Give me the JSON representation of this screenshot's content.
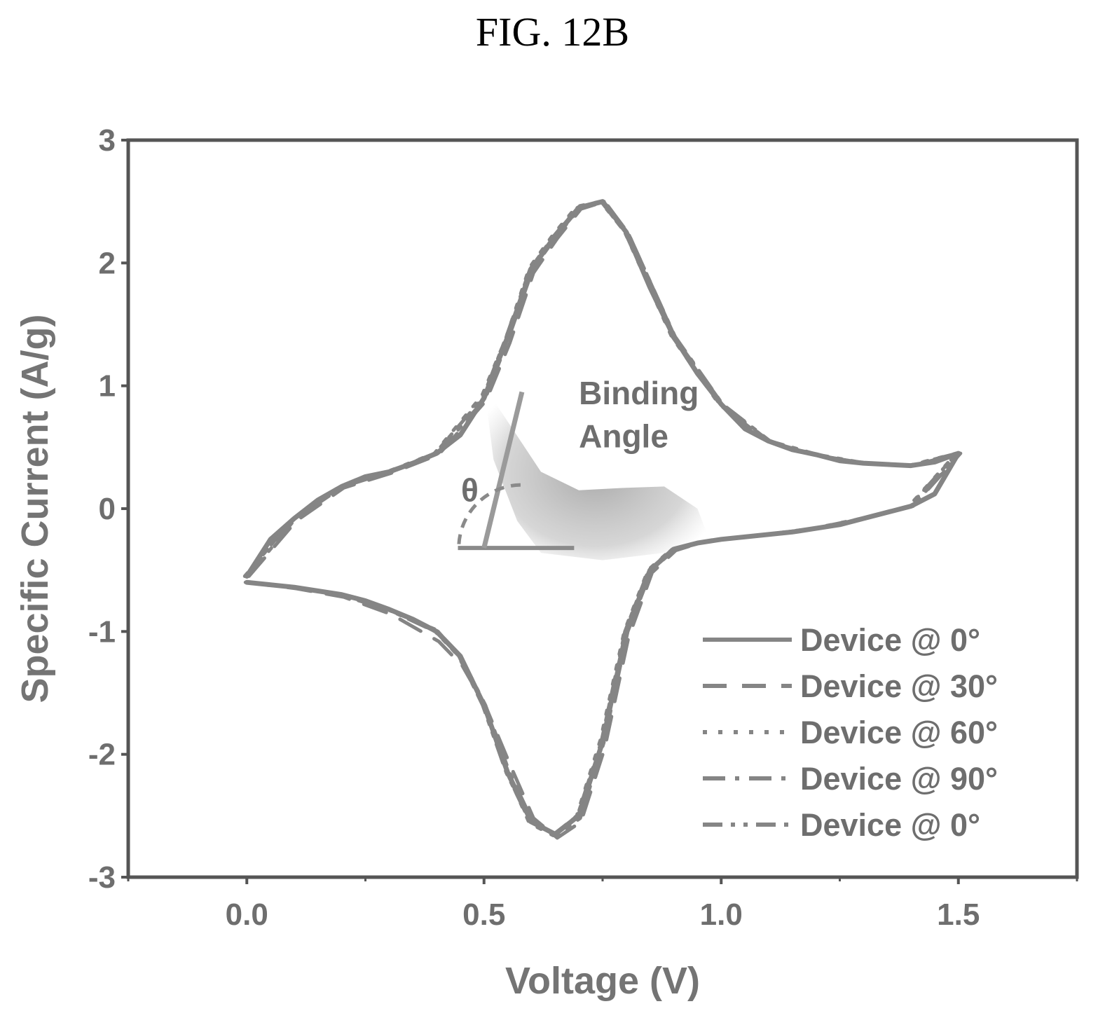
{
  "figure_label": "FIG. 12B",
  "chart_data": {
    "type": "line",
    "title": "",
    "xlabel": "Voltage (V)",
    "ylabel": "Specific Current (A/g)",
    "xlim": [
      -0.25,
      1.75
    ],
    "ylim": [
      -3,
      3
    ],
    "xticks": [
      0.0,
      0.5,
      1.0,
      1.5
    ],
    "xtick_labels": [
      "0.0",
      "0.5",
      "1.0",
      "1.5"
    ],
    "yticks": [
      -3,
      -2,
      -1,
      0,
      1,
      2,
      3
    ],
    "ytick_labels": [
      "-3",
      "-2",
      "-1",
      "0",
      "1",
      "2",
      "3"
    ],
    "grid": false,
    "legend_position": "bottom-right",
    "annotations": {
      "binding_line1": "Binding",
      "binding_line2": "Angle",
      "theta": "θ"
    },
    "series": [
      {
        "name": "Device @ 0°",
        "style": "solid",
        "x": [
          0.0,
          0.05,
          0.1,
          0.15,
          0.2,
          0.25,
          0.3,
          0.35,
          0.4,
          0.45,
          0.5,
          0.55,
          0.6,
          0.65,
          0.7,
          0.75,
          0.8,
          0.85,
          0.9,
          0.95,
          1.0,
          1.05,
          1.1,
          1.15,
          1.2,
          1.25,
          1.3,
          1.35,
          1.4,
          1.45,
          1.5,
          1.45,
          1.4,
          1.35,
          1.3,
          1.25,
          1.2,
          1.15,
          1.1,
          1.05,
          1.0,
          0.95,
          0.9,
          0.85,
          0.8,
          0.75,
          0.7,
          0.65,
          0.6,
          0.55,
          0.5,
          0.45,
          0.4,
          0.35,
          0.3,
          0.25,
          0.2,
          0.15,
          0.1,
          0.05,
          0.0
        ],
        "y": [
          -0.55,
          -0.25,
          -0.08,
          0.07,
          0.18,
          0.26,
          0.3,
          0.37,
          0.45,
          0.6,
          0.9,
          1.4,
          1.95,
          2.22,
          2.45,
          2.5,
          2.25,
          1.8,
          1.4,
          1.1,
          0.85,
          0.65,
          0.55,
          0.48,
          0.44,
          0.39,
          0.37,
          0.36,
          0.35,
          0.38,
          0.45,
          0.12,
          0.02,
          -0.03,
          -0.08,
          -0.13,
          -0.16,
          -0.19,
          -0.21,
          -0.23,
          -0.25,
          -0.28,
          -0.33,
          -0.5,
          -1.0,
          -1.9,
          -2.5,
          -2.65,
          -2.55,
          -2.15,
          -1.6,
          -1.2,
          -1.0,
          -0.9,
          -0.82,
          -0.75,
          -0.7,
          -0.67,
          -0.64,
          -0.62,
          -0.6
        ]
      },
      {
        "name": "Device @ 30°",
        "style": "dashed",
        "x": [
          0.0,
          0.1,
          0.2,
          0.3,
          0.4,
          0.5,
          0.55,
          0.6,
          0.65,
          0.7,
          0.75,
          0.8,
          0.9,
          1.0,
          1.1,
          1.2,
          1.3,
          1.4,
          1.5,
          1.4,
          1.3,
          1.2,
          1.1,
          1.0,
          0.95,
          0.9,
          0.85,
          0.8,
          0.75,
          0.7,
          0.65,
          0.6,
          0.55,
          0.5,
          0.45,
          0.4,
          0.3,
          0.2,
          0.1,
          0.0
        ],
        "y": [
          -0.55,
          -0.1,
          0.17,
          0.29,
          0.44,
          0.88,
          1.35,
          1.92,
          2.2,
          2.44,
          2.5,
          2.24,
          1.38,
          0.84,
          0.54,
          0.43,
          0.37,
          0.35,
          0.45,
          0.02,
          -0.08,
          -0.16,
          -0.21,
          -0.25,
          -0.28,
          -0.34,
          -0.52,
          -1.05,
          -1.95,
          -2.55,
          -2.68,
          -2.52,
          -2.08,
          -1.62,
          -1.28,
          -1.08,
          -0.86,
          -0.72,
          -0.65,
          -0.6
        ]
      },
      {
        "name": "Device @ 60°",
        "style": "dotted",
        "x": [
          0.0,
          0.1,
          0.2,
          0.3,
          0.4,
          0.5,
          0.55,
          0.6,
          0.65,
          0.7,
          0.75,
          0.8,
          0.9,
          1.0,
          1.1,
          1.2,
          1.3,
          1.4,
          1.5,
          1.4,
          1.3,
          1.2,
          1.1,
          1.0,
          0.95,
          0.9,
          0.85,
          0.8,
          0.75,
          0.7,
          0.65,
          0.6,
          0.55,
          0.5,
          0.45,
          0.4,
          0.3,
          0.2,
          0.1,
          0.0
        ],
        "y": [
          -0.55,
          -0.09,
          0.18,
          0.3,
          0.45,
          0.92,
          1.38,
          1.96,
          2.23,
          2.46,
          2.5,
          2.26,
          1.4,
          0.85,
          0.55,
          0.44,
          0.37,
          0.35,
          0.45,
          0.02,
          -0.08,
          -0.16,
          -0.21,
          -0.25,
          -0.28,
          -0.33,
          -0.5,
          -1.0,
          -1.88,
          -2.5,
          -2.66,
          -2.56,
          -2.12,
          -1.56,
          -1.2,
          -0.98,
          -0.82,
          -0.7,
          -0.64,
          -0.6
        ]
      },
      {
        "name": "Device @ 90°",
        "style": "dashdot",
        "x": [
          0.0,
          0.1,
          0.2,
          0.3,
          0.4,
          0.5,
          0.55,
          0.6,
          0.65,
          0.7,
          0.75,
          0.8,
          0.9,
          1.0,
          1.1,
          1.2,
          1.3,
          1.4,
          1.5,
          1.4,
          1.3,
          1.2,
          1.1,
          1.0,
          0.95,
          0.9,
          0.85,
          0.8,
          0.75,
          0.7,
          0.65,
          0.6,
          0.55,
          0.5,
          0.45,
          0.4,
          0.3,
          0.2,
          0.1,
          0.0
        ],
        "y": [
          -0.55,
          -0.08,
          0.18,
          0.3,
          0.45,
          0.9,
          1.4,
          1.95,
          2.22,
          2.45,
          2.5,
          2.25,
          1.4,
          0.85,
          0.55,
          0.44,
          0.37,
          0.35,
          0.45,
          0.02,
          -0.08,
          -0.16,
          -0.21,
          -0.25,
          -0.28,
          -0.33,
          -0.5,
          -1.0,
          -1.9,
          -2.52,
          -2.66,
          -2.55,
          -2.14,
          -1.6,
          -1.22,
          -1.0,
          -0.82,
          -0.7,
          -0.64,
          -0.6
        ]
      },
      {
        "name": "Device @ 0°",
        "style": "dashdotdot",
        "x": [
          0.0,
          0.1,
          0.2,
          0.3,
          0.4,
          0.5,
          0.55,
          0.6,
          0.65,
          0.7,
          0.75,
          0.8,
          0.9,
          1.0,
          1.1,
          1.2,
          1.3,
          1.4,
          1.5,
          1.4,
          1.3,
          1.2,
          1.1,
          1.0,
          0.95,
          0.9,
          0.85,
          0.8,
          0.75,
          0.7,
          0.65,
          0.6,
          0.55,
          0.5,
          0.45,
          0.4,
          0.3,
          0.2,
          0.1,
          0.0
        ],
        "y": [
          -0.55,
          -0.08,
          0.18,
          0.3,
          0.45,
          0.9,
          1.4,
          1.95,
          2.22,
          2.45,
          2.5,
          2.25,
          1.4,
          0.85,
          0.55,
          0.44,
          0.37,
          0.35,
          0.45,
          0.02,
          -0.08,
          -0.16,
          -0.21,
          -0.25,
          -0.28,
          -0.33,
          -0.5,
          -1.0,
          -1.9,
          -2.5,
          -2.65,
          -2.55,
          -2.15,
          -1.6,
          -1.2,
          -1.0,
          -0.82,
          -0.7,
          -0.64,
          -0.6
        ]
      }
    ]
  }
}
